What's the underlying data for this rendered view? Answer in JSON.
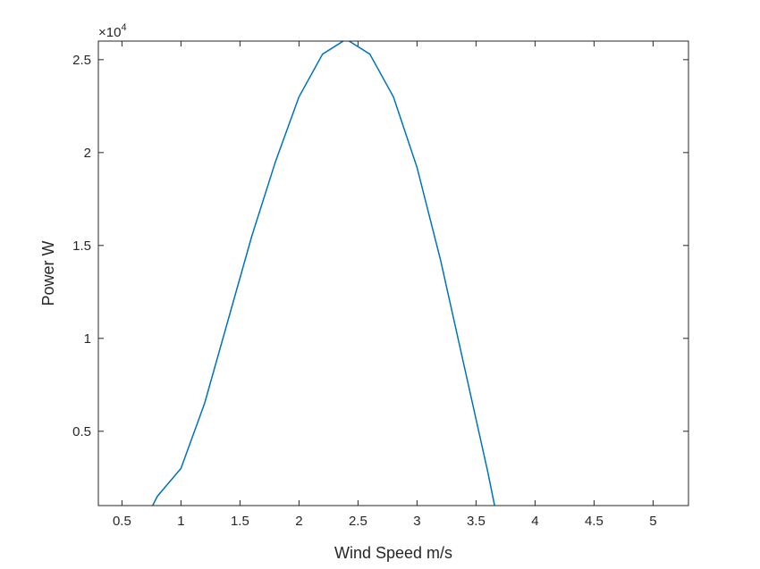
{
  "chart_data": {
    "type": "line",
    "xlabel": "Wind Speed m/s",
    "ylabel": "Power W",
    "exponent_base": "×10",
    "exponent_power": "4",
    "xlim": [
      0.3,
      5.3
    ],
    "ylim": [
      0.1,
      2.6
    ],
    "y_scale_note": "y values shown in units of 10^4 W",
    "grid": false,
    "xticks": [
      0.5,
      1,
      1.5,
      2,
      2.5,
      3,
      3.5,
      4,
      4.5,
      5
    ],
    "xtick_labels": [
      "0.5",
      "1",
      "1.5",
      "2",
      "2.5",
      "3",
      "3.5",
      "4",
      "4.5",
      "5"
    ],
    "yticks": [
      0.5,
      1,
      1.5,
      2,
      2.5
    ],
    "ytick_labels": [
      "0.5",
      "1",
      "1.5",
      "2",
      "2.5"
    ],
    "series": [
      {
        "color": "#0072BD",
        "x": [
          0.6,
          0.8,
          1.0,
          1.2,
          1.4,
          1.6,
          1.8,
          2.0,
          2.2,
          2.4,
          2.6,
          2.8,
          3.0,
          3.2,
          3.4,
          3.6,
          3.8
        ],
        "y": [
          -0.1,
          0.15,
          0.3,
          0.65,
          1.1,
          1.55,
          1.95,
          2.3,
          2.53,
          2.61,
          2.53,
          2.3,
          1.92,
          1.42,
          0.85,
          0.28,
          -0.35
        ]
      }
    ]
  }
}
